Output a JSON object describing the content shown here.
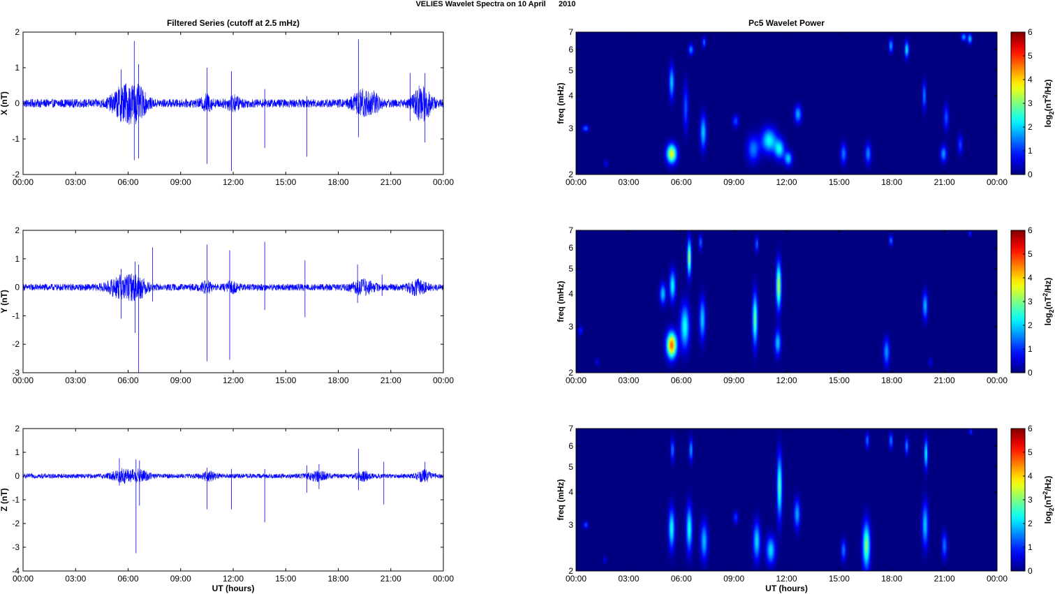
{
  "figure": {
    "title": "VELIES Wavelet Spectra on 10 April      2010",
    "left_column_title": "Filtered Series (cutoff at 2.5 mHz)",
    "right_column_title": "Pc5 Wavelet Power"
  },
  "chart_data": [
    {
      "type": "line",
      "component": "X",
      "title": "Filtered Series (cutoff at 2.5 mHz)",
      "ylabel": "X (nT)",
      "xlabel": "",
      "xlim": [
        0,
        24
      ],
      "ylim": [
        -2,
        2
      ],
      "x_tick_labels": [
        "00:00",
        "03:00",
        "06:00",
        "09:00",
        "12:00",
        "15:00",
        "18:00",
        "21:00",
        "00:00"
      ],
      "y_tick_labels": [
        "-2",
        "-1",
        "0",
        "1",
        "2"
      ],
      "y_ticks": [
        -2,
        -1,
        0,
        1,
        2
      ],
      "line_color": "#0000ff",
      "baseline_amplitude": 0.12,
      "bursts": [
        {
          "t": 5.8,
          "width": 0.7,
          "amp": 0.45
        },
        {
          "t": 6.6,
          "width": 0.5,
          "amp": 0.3
        },
        {
          "t": 10.5,
          "width": 0.3,
          "amp": 0.18
        },
        {
          "t": 12.0,
          "width": 0.4,
          "amp": 0.15
        },
        {
          "t": 19.3,
          "width": 0.5,
          "amp": 0.3
        },
        {
          "t": 20.0,
          "width": 0.4,
          "amp": 0.22
        },
        {
          "t": 22.8,
          "width": 0.5,
          "amp": 0.45
        }
      ],
      "spikes": [
        {
          "t": 5.6,
          "top": 0.95,
          "bottom": -0.5
        },
        {
          "t": 6.35,
          "top": 1.75,
          "bottom": -1.6
        },
        {
          "t": 6.6,
          "top": 1.1,
          "bottom": -1.55
        },
        {
          "t": 10.5,
          "top": 1.0,
          "bottom": -1.7
        },
        {
          "t": 11.9,
          "top": 0.9,
          "bottom": -1.9
        },
        {
          "t": 13.8,
          "top": 0.4,
          "bottom": -1.25
        },
        {
          "t": 16.2,
          "top": 0.2,
          "bottom": -1.5
        },
        {
          "t": 19.15,
          "top": 1.8,
          "bottom": -0.95
        },
        {
          "t": 22.1,
          "top": 0.85,
          "bottom": -0.5
        },
        {
          "t": 22.95,
          "top": 0.85,
          "bottom": -1.1
        }
      ]
    },
    {
      "type": "line",
      "component": "Y",
      "title": "",
      "ylabel": "Y (nT)",
      "xlabel": "",
      "xlim": [
        0,
        24
      ],
      "ylim": [
        -3,
        2
      ],
      "x_tick_labels": [
        "00:00",
        "03:00",
        "06:00",
        "09:00",
        "12:00",
        "15:00",
        "18:00",
        "21:00",
        "00:00"
      ],
      "y_tick_labels": [
        "-3",
        "-2",
        "-1",
        "0",
        "1",
        "2"
      ],
      "y_ticks": [
        -3,
        -2,
        -1,
        0,
        1,
        2
      ],
      "line_color": "#0000ff",
      "baseline_amplitude": 0.12,
      "bursts": [
        {
          "t": 5.7,
          "width": 0.8,
          "amp": 0.35
        },
        {
          "t": 6.6,
          "width": 0.5,
          "amp": 0.25
        },
        {
          "t": 10.5,
          "width": 0.3,
          "amp": 0.15
        },
        {
          "t": 11.9,
          "width": 0.3,
          "amp": 0.15
        },
        {
          "t": 19.4,
          "width": 0.6,
          "amp": 0.2
        },
        {
          "t": 22.5,
          "width": 0.5,
          "amp": 0.2
        }
      ],
      "spikes": [
        {
          "t": 5.6,
          "top": 0.65,
          "bottom": -1.1
        },
        {
          "t": 6.4,
          "top": 0.9,
          "bottom": -1.6
        },
        {
          "t": 6.6,
          "top": 0.8,
          "bottom": -3.0
        },
        {
          "t": 7.4,
          "top": 1.4,
          "bottom": -0.5
        },
        {
          "t": 10.5,
          "top": 1.5,
          "bottom": -2.6
        },
        {
          "t": 11.8,
          "top": 1.3,
          "bottom": -2.55
        },
        {
          "t": 13.8,
          "top": 1.6,
          "bottom": -0.8
        },
        {
          "t": 16.1,
          "top": 0.95,
          "bottom": -1.05
        },
        {
          "t": 19.1,
          "top": 0.8,
          "bottom": -0.55
        },
        {
          "t": 20.5,
          "top": 0.45,
          "bottom": -0.3
        }
      ]
    },
    {
      "type": "line",
      "component": "Z",
      "title": "",
      "ylabel": "Z (nT)",
      "xlabel": "UT (hours)",
      "xlim": [
        0,
        24
      ],
      "ylim": [
        -4,
        2
      ],
      "x_tick_labels": [
        "00:00",
        "03:00",
        "06:00",
        "09:00",
        "12:00",
        "15:00",
        "18:00",
        "21:00",
        "00:00"
      ],
      "y_tick_labels": [
        "-4",
        "-3",
        "-2",
        "-1",
        "0",
        "1",
        "2"
      ],
      "y_ticks": [
        -4,
        -3,
        -2,
        -1,
        0,
        1,
        2
      ],
      "line_color": "#0000ff",
      "baseline_amplitude": 0.1,
      "bursts": [
        {
          "t": 5.7,
          "width": 0.6,
          "amp": 0.25
        },
        {
          "t": 6.7,
          "width": 0.5,
          "amp": 0.2
        },
        {
          "t": 10.6,
          "width": 0.4,
          "amp": 0.15
        },
        {
          "t": 16.8,
          "width": 0.6,
          "amp": 0.15
        },
        {
          "t": 19.4,
          "width": 0.4,
          "amp": 0.15
        },
        {
          "t": 22.9,
          "width": 0.4,
          "amp": 0.2
        }
      ],
      "spikes": [
        {
          "t": 5.5,
          "top": 0.75,
          "bottom": -0.4
        },
        {
          "t": 6.45,
          "top": 0.7,
          "bottom": -3.25
        },
        {
          "t": 6.65,
          "top": 0.65,
          "bottom": -1.25
        },
        {
          "t": 10.5,
          "top": 0.35,
          "bottom": -1.4
        },
        {
          "t": 11.9,
          "top": 0.3,
          "bottom": -1.4
        },
        {
          "t": 13.8,
          "top": 0.3,
          "bottom": -1.95
        },
        {
          "t": 16.2,
          "top": 0.45,
          "bottom": -0.7
        },
        {
          "t": 16.9,
          "top": 0.5,
          "bottom": -0.55
        },
        {
          "t": 19.15,
          "top": 1.15,
          "bottom": -0.6
        },
        {
          "t": 20.6,
          "top": 0.6,
          "bottom": -1.2
        },
        {
          "t": 22.95,
          "top": 0.6,
          "bottom": -0.2
        }
      ]
    },
    {
      "type": "heatmap",
      "component": "X",
      "title": "Pc5 Wavelet Power",
      "ylabel": "freq (mHz)",
      "xlabel": "",
      "xlim": [
        0,
        24
      ],
      "ylim": [
        2,
        7
      ],
      "yscale": "log",
      "x_tick_labels": [
        "00:00",
        "03:00",
        "06:00",
        "09:00",
        "12:00",
        "15:00",
        "18:00",
        "21:00",
        "00:00"
      ],
      "y_ticks": [
        2,
        3,
        4,
        5,
        6,
        7
      ],
      "y_tick_labels": [
        "2",
        "3",
        "4",
        "5",
        "6",
        "7"
      ],
      "colorbar_label": "log2(nT^2/Hz)",
      "clim": [
        0,
        6
      ],
      "colorbar_ticks": [
        "0",
        "1",
        "2",
        "3",
        "4",
        "5",
        "6"
      ],
      "blobs": [
        {
          "t": 0.55,
          "f": 3.0,
          "st": 0.12,
          "sf": 0.06,
          "amp": 1.5
        },
        {
          "t": 1.7,
          "f": 2.2,
          "st": 0.08,
          "sf": 0.05,
          "amp": 0.7
        },
        {
          "t": 5.45,
          "f": 2.4,
          "st": 0.2,
          "sf": 0.14,
          "amp": 3.7
        },
        {
          "t": 5.45,
          "f": 4.5,
          "st": 0.1,
          "sf": 0.45,
          "amp": 2.0
        },
        {
          "t": 6.25,
          "f": 3.6,
          "st": 0.1,
          "sf": 0.5,
          "amp": 1.3
        },
        {
          "t": 6.55,
          "f": 6.0,
          "st": 0.1,
          "sf": 0.2,
          "amp": 1.6
        },
        {
          "t": 7.25,
          "f": 2.9,
          "st": 0.12,
          "sf": 0.3,
          "amp": 2.0
        },
        {
          "t": 7.3,
          "f": 6.4,
          "st": 0.07,
          "sf": 0.2,
          "amp": 1.5
        },
        {
          "t": 9.1,
          "f": 3.2,
          "st": 0.12,
          "sf": 0.12,
          "amp": 1.2
        },
        {
          "t": 10.1,
          "f": 2.5,
          "st": 0.25,
          "sf": 0.2,
          "amp": 1.5
        },
        {
          "t": 11.0,
          "f": 2.7,
          "st": 0.3,
          "sf": 0.2,
          "amp": 2.3
        },
        {
          "t": 11.6,
          "f": 2.5,
          "st": 0.2,
          "sf": 0.15,
          "amp": 2.2
        },
        {
          "t": 12.1,
          "f": 2.3,
          "st": 0.15,
          "sf": 0.1,
          "amp": 2.0
        },
        {
          "t": 12.65,
          "f": 3.4,
          "st": 0.14,
          "sf": 0.18,
          "amp": 1.8
        },
        {
          "t": 15.25,
          "f": 2.4,
          "st": 0.12,
          "sf": 0.15,
          "amp": 1.5
        },
        {
          "t": 16.65,
          "f": 2.4,
          "st": 0.12,
          "sf": 0.15,
          "amp": 1.6
        },
        {
          "t": 17.95,
          "f": 6.2,
          "st": 0.08,
          "sf": 0.25,
          "amp": 1.8
        },
        {
          "t": 18.85,
          "f": 6.0,
          "st": 0.08,
          "sf": 0.3,
          "amp": 2.3
        },
        {
          "t": 19.85,
          "f": 4.0,
          "st": 0.07,
          "sf": 0.35,
          "amp": 1.6
        },
        {
          "t": 20.95,
          "f": 2.4,
          "st": 0.12,
          "sf": 0.12,
          "amp": 1.7
        },
        {
          "t": 21.1,
          "f": 3.3,
          "st": 0.1,
          "sf": 0.25,
          "amp": 1.3
        },
        {
          "t": 21.9,
          "f": 2.6,
          "st": 0.1,
          "sf": 0.15,
          "amp": 1.2
        },
        {
          "t": 22.1,
          "f": 6.7,
          "st": 0.1,
          "sf": 0.15,
          "amp": 1.8
        },
        {
          "t": 22.45,
          "f": 6.6,
          "st": 0.08,
          "sf": 0.2,
          "amp": 2.1
        }
      ]
    },
    {
      "type": "heatmap",
      "component": "Y",
      "title": "",
      "ylabel": "freq (mHz)",
      "xlabel": "",
      "xlim": [
        0,
        24
      ],
      "ylim": [
        2,
        7
      ],
      "yscale": "log",
      "x_tick_labels": [
        "00:00",
        "03:00",
        "06:00",
        "09:00",
        "12:00",
        "15:00",
        "18:00",
        "21:00",
        "00:00"
      ],
      "y_ticks": [
        2,
        3,
        4,
        5,
        6,
        7
      ],
      "y_tick_labels": [
        "2",
        "3",
        "4",
        "5",
        "6",
        "7"
      ],
      "colorbar_label": "log2(nT^2/Hz)",
      "clim": [
        0,
        6
      ],
      "colorbar_ticks": [
        "0",
        "1",
        "2",
        "3",
        "4",
        "5",
        "6"
      ],
      "blobs": [
        {
          "t": 0.25,
          "f": 2.9,
          "st": 0.08,
          "sf": 0.08,
          "amp": 1.0
        },
        {
          "t": 1.2,
          "f": 2.2,
          "st": 0.08,
          "sf": 0.05,
          "amp": 0.6
        },
        {
          "t": 4.95,
          "f": 4.0,
          "st": 0.12,
          "sf": 0.25,
          "amp": 2.0
        },
        {
          "t": 5.45,
          "f": 2.55,
          "st": 0.2,
          "sf": 0.2,
          "amp": 4.7
        },
        {
          "t": 5.5,
          "f": 4.3,
          "st": 0.12,
          "sf": 0.4,
          "amp": 2.3
        },
        {
          "t": 6.2,
          "f": 3.0,
          "st": 0.18,
          "sf": 0.4,
          "amp": 2.4
        },
        {
          "t": 6.45,
          "f": 5.5,
          "st": 0.08,
          "sf": 0.6,
          "amp": 3.3
        },
        {
          "t": 7.2,
          "f": 3.2,
          "st": 0.12,
          "sf": 0.4,
          "amp": 2.0
        },
        {
          "t": 7.1,
          "f": 6.3,
          "st": 0.06,
          "sf": 0.3,
          "amp": 1.5
        },
        {
          "t": 10.2,
          "f": 3.2,
          "st": 0.1,
          "sf": 0.5,
          "amp": 2.9
        },
        {
          "t": 10.3,
          "f": 6.2,
          "st": 0.06,
          "sf": 0.3,
          "amp": 1.5
        },
        {
          "t": 11.55,
          "f": 4.3,
          "st": 0.1,
          "sf": 0.6,
          "amp": 3.4
        },
        {
          "t": 11.5,
          "f": 2.6,
          "st": 0.12,
          "sf": 0.2,
          "amp": 2.0
        },
        {
          "t": 17.7,
          "f": 2.4,
          "st": 0.12,
          "sf": 0.2,
          "amp": 1.7
        },
        {
          "t": 17.95,
          "f": 6.4,
          "st": 0.07,
          "sf": 0.2,
          "amp": 1.5
        },
        {
          "t": 19.9,
          "f": 3.6,
          "st": 0.1,
          "sf": 0.3,
          "amp": 1.9
        },
        {
          "t": 20.2,
          "f": 2.2,
          "st": 0.06,
          "sf": 0.06,
          "amp": 0.8
        },
        {
          "t": 22.45,
          "f": 6.8,
          "st": 0.06,
          "sf": 0.12,
          "amp": 1.0
        }
      ]
    },
    {
      "type": "heatmap",
      "component": "Z",
      "title": "",
      "ylabel": "freq (mHz)",
      "xlabel": "UT (hours)",
      "xlim": [
        0,
        24
      ],
      "ylim": [
        2,
        7
      ],
      "yscale": "log",
      "x_tick_labels": [
        "00:00",
        "03:00",
        "06:00",
        "09:00",
        "12:00",
        "15:00",
        "18:00",
        "21:00",
        "00:00"
      ],
      "y_ticks": [
        2,
        3,
        4,
        5,
        6,
        7
      ],
      "y_tick_labels": [
        "2",
        "3",
        "4",
        "5",
        "6",
        "7"
      ],
      "colorbar_label": "log2(nT^2/Hz)",
      "clim": [
        0,
        6
      ],
      "colorbar_ticks": [
        "0",
        "1",
        "2",
        "3",
        "4",
        "5",
        "6"
      ],
      "blobs": [
        {
          "t": 0.55,
          "f": 3.0,
          "st": 0.1,
          "sf": 0.06,
          "amp": 1.3
        },
        {
          "t": 1.65,
          "f": 2.2,
          "st": 0.07,
          "sf": 0.05,
          "amp": 0.7
        },
        {
          "t": 5.45,
          "f": 2.9,
          "st": 0.12,
          "sf": 0.35,
          "amp": 2.4
        },
        {
          "t": 5.5,
          "f": 5.8,
          "st": 0.07,
          "sf": 0.4,
          "amp": 1.5
        },
        {
          "t": 6.45,
          "f": 2.9,
          "st": 0.12,
          "sf": 0.4,
          "amp": 2.4
        },
        {
          "t": 6.55,
          "f": 5.8,
          "st": 0.07,
          "sf": 0.4,
          "amp": 1.8
        },
        {
          "t": 7.3,
          "f": 2.6,
          "st": 0.14,
          "sf": 0.3,
          "amp": 1.9
        },
        {
          "t": 9.1,
          "f": 3.2,
          "st": 0.1,
          "sf": 0.12,
          "amp": 1.1
        },
        {
          "t": 10.3,
          "f": 2.6,
          "st": 0.14,
          "sf": 0.3,
          "amp": 2.1
        },
        {
          "t": 11.1,
          "f": 2.4,
          "st": 0.18,
          "sf": 0.2,
          "amp": 2.1
        },
        {
          "t": 11.6,
          "f": 4.2,
          "st": 0.1,
          "sf": 0.8,
          "amp": 2.8
        },
        {
          "t": 12.6,
          "f": 3.3,
          "st": 0.12,
          "sf": 0.3,
          "amp": 1.8
        },
        {
          "t": 15.25,
          "f": 2.4,
          "st": 0.1,
          "sf": 0.15,
          "amp": 1.5
        },
        {
          "t": 16.55,
          "f": 2.5,
          "st": 0.15,
          "sf": 0.35,
          "amp": 3.0
        },
        {
          "t": 16.6,
          "f": 6.3,
          "st": 0.07,
          "sf": 0.3,
          "amp": 1.5
        },
        {
          "t": 17.95,
          "f": 6.3,
          "st": 0.07,
          "sf": 0.3,
          "amp": 1.6
        },
        {
          "t": 18.85,
          "f": 6.0,
          "st": 0.07,
          "sf": 0.3,
          "amp": 1.7
        },
        {
          "t": 19.9,
          "f": 3.0,
          "st": 0.12,
          "sf": 0.4,
          "amp": 2.0
        },
        {
          "t": 19.95,
          "f": 5.6,
          "st": 0.07,
          "sf": 0.5,
          "amp": 2.4
        },
        {
          "t": 21.0,
          "f": 2.5,
          "st": 0.1,
          "sf": 0.2,
          "amp": 1.5
        },
        {
          "t": 22.5,
          "f": 6.8,
          "st": 0.06,
          "sf": 0.12,
          "amp": 1.2
        }
      ]
    }
  ]
}
